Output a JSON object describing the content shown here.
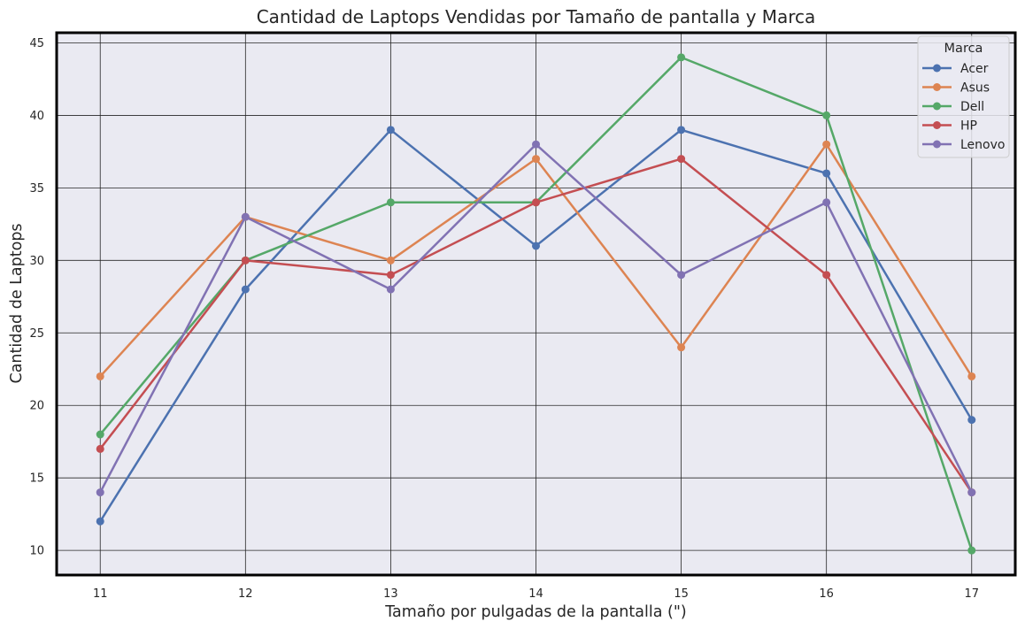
{
  "chart_data": {
    "type": "line",
    "title": "Cantidad de Laptops Vendidas por Tamaño de pantalla y Marca",
    "xlabel": "Tamaño por pulgadas de la pantalla (\")",
    "ylabel": "Cantidad de Laptops",
    "x": [
      11,
      12,
      13,
      14,
      15,
      16,
      17
    ],
    "xticks": [
      "11",
      "12",
      "13",
      "14",
      "15",
      "16",
      "17"
    ],
    "yticks": [
      10,
      15,
      20,
      25,
      30,
      35,
      40,
      45
    ],
    "ylim": [
      8.3,
      45.7
    ],
    "xlim": [
      10.7,
      17.3
    ],
    "grid": true,
    "legend": {
      "title": "Marca",
      "position": "top-right"
    },
    "series": [
      {
        "name": "Acer",
        "color": "#4c72b0",
        "values": [
          12,
          28,
          39,
          31,
          39,
          36,
          19
        ]
      },
      {
        "name": "Asus",
        "color": "#dd8452",
        "values": [
          22,
          33,
          30,
          37,
          24,
          38,
          22
        ]
      },
      {
        "name": "Dell",
        "color": "#55a868",
        "values": [
          18,
          30,
          34,
          34,
          44,
          40,
          10
        ]
      },
      {
        "name": "HP",
        "color": "#c44e52",
        "values": [
          17,
          30,
          29,
          34,
          37,
          29,
          14
        ]
      },
      {
        "name": "Lenovo",
        "color": "#8172b3",
        "values": [
          14,
          33,
          28,
          38,
          29,
          34,
          14
        ]
      }
    ],
    "colors": {
      "plot_background": "#eaeaf2",
      "grid": "#262626",
      "frame": "#000000"
    }
  }
}
